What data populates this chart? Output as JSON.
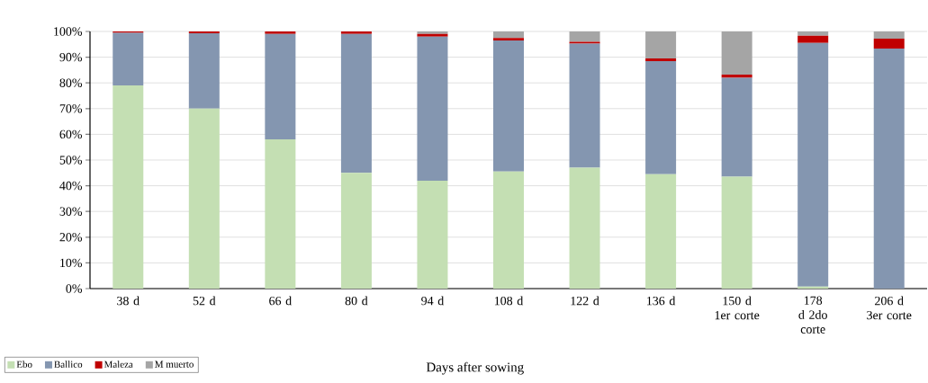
{
  "chart_data": {
    "type": "bar",
    "stacked": true,
    "xlabel": "Days after sowing",
    "categories": [
      "38 d",
      "52  d",
      "66 d",
      "80 d",
      "94 d",
      "108 d",
      "122 d",
      "136 d",
      "150 d 1er corte",
      "178 d 2do corte",
      "206 d 3er corte"
    ],
    "series": [
      {
        "name": "Ebo",
        "color": "#c4dfb3",
        "values": [
          79,
          70,
          58,
          45,
          42,
          45.5,
          47,
          44.5,
          43.5,
          0.8,
          0
        ]
      },
      {
        "name": "Ballico",
        "color": "#8496b0",
        "values": [
          20.5,
          29.3,
          41,
          54,
          56,
          51,
          48.3,
          44,
          38.5,
          94.7,
          93.4
        ]
      },
      {
        "name": "Maleza",
        "color": "#c00000",
        "values": [
          0.5,
          0.7,
          1,
          1,
          1,
          1,
          0.7,
          1,
          1.2,
          2.8,
          3.8
        ]
      },
      {
        "name": "M muerto",
        "color": "#a5a5a5",
        "values": [
          0,
          0,
          0,
          0,
          1,
          2.5,
          4,
          10.5,
          16.8,
          1.7,
          2.8
        ]
      }
    ],
    "ylim": [
      0,
      100
    ],
    "yticks": [
      {
        "value": 0,
        "label": "0%"
      },
      {
        "value": 10,
        "label": "10%"
      },
      {
        "value": 20,
        "label": "20%"
      },
      {
        "value": 30,
        "label": "30%"
      },
      {
        "value": 40,
        "label": "40%"
      },
      {
        "value": 50,
        "label": "50%"
      },
      {
        "value": 60,
        "label": "60%"
      },
      {
        "value": 70,
        "label": "70%"
      },
      {
        "value": 80,
        "label": "80%"
      },
      {
        "value": 90,
        "label": "90%"
      },
      {
        "value": 100,
        "label": "100%"
      }
    ],
    "grid": "y",
    "legend": "bottom left"
  }
}
